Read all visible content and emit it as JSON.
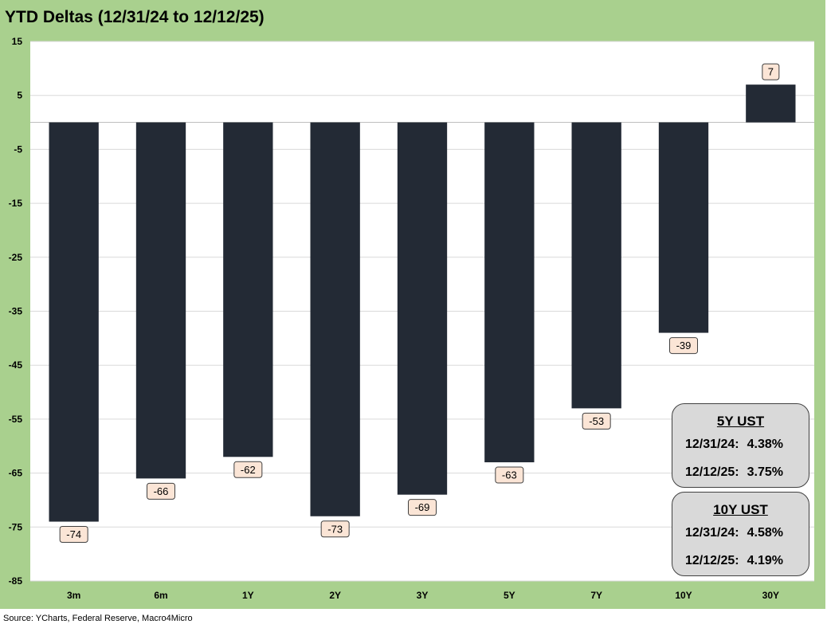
{
  "title": "YTD Deltas (12/31/24 to 12/12/25)",
  "source": "Source: YCharts, Federal Reserve, Macro4Micro",
  "colors": {
    "frame": "#a9d08e",
    "bar": "#232a35",
    "label_bg": "#fbe5d6",
    "grid": "#d9d9d9",
    "box_bg": "#d9d9d9"
  },
  "chart_data": {
    "type": "bar",
    "title": "YTD Deltas (12/31/24 to 12/12/25)",
    "xlabel": "",
    "ylabel": "",
    "categories": [
      "3m",
      "6m",
      "1Y",
      "2Y",
      "3Y",
      "5Y",
      "7Y",
      "10Y",
      "30Y"
    ],
    "values": [
      -74,
      -66,
      -62,
      -73,
      -69,
      -63,
      -53,
      -39,
      7
    ],
    "ylim": [
      -85,
      15
    ],
    "yticks": [
      15,
      5,
      -5,
      -15,
      -25,
      -35,
      -45,
      -55,
      -65,
      -75,
      -85
    ],
    "grid": true,
    "legend": "none",
    "data_labels": true
  },
  "boxes": [
    {
      "heading": "5Y UST",
      "rows": [
        {
          "date": "12/31/24:",
          "value": "4.38%"
        },
        {
          "date": "12/12/25:",
          "value": "3.75%"
        }
      ]
    },
    {
      "heading": "10Y UST",
      "rows": [
        {
          "date": "12/31/24:",
          "value": "4.58%"
        },
        {
          "date": "12/12/25:",
          "value": "4.19%"
        }
      ]
    }
  ]
}
